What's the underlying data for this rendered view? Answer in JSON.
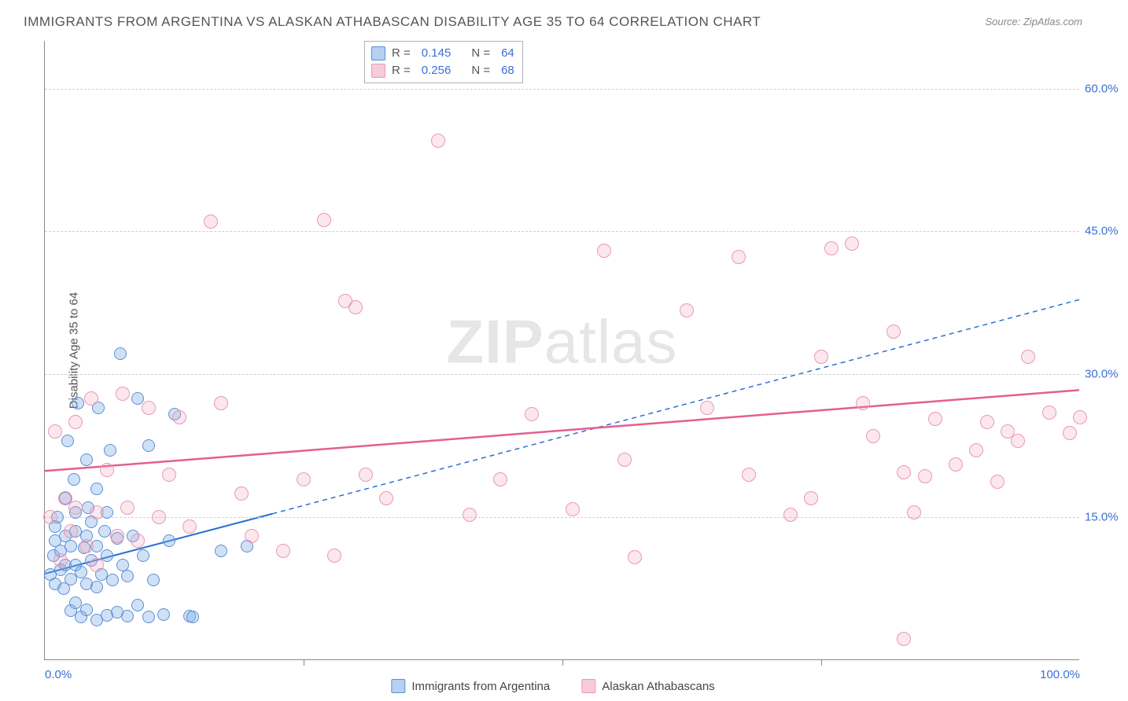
{
  "title": "IMMIGRANTS FROM ARGENTINA VS ALASKAN ATHABASCAN DISABILITY AGE 35 TO 64 CORRELATION CHART",
  "source": "Source: ZipAtlas.com",
  "watermark_zip": "ZIP",
  "watermark_atlas": "atlas",
  "y_axis_title": "Disability Age 35 to 64",
  "chart": {
    "type": "scatter",
    "xlim": [
      0,
      100
    ],
    "ylim": [
      0,
      65
    ],
    "x_ticks": [
      0,
      25,
      50,
      75,
      100
    ],
    "x_tick_labels": [
      "0.0%",
      "",
      "",
      "",
      "100.0%"
    ],
    "y_ticks": [
      15,
      30,
      45,
      60
    ],
    "y_tick_labels": [
      "15.0%",
      "30.0%",
      "45.0%",
      "60.0%"
    ],
    "background_color": "#ffffff",
    "grid_color": "#d0d0d0",
    "point_radius": 8,
    "series": [
      {
        "name": "Immigrants from Argentina",
        "color_fill": "rgba(120,170,230,0.35)",
        "color_stroke": "#5b8fd6",
        "r": 0.145,
        "n": 64,
        "trend": {
          "x1": 0,
          "y1": 9.0,
          "x2_solid": 22,
          "y2_solid": 15.3,
          "x2_dash": 100,
          "y2_dash": 37.8,
          "stroke": "#2b6fd4",
          "width": 2,
          "dash": "6 5"
        },
        "points": [
          [
            0.5,
            9
          ],
          [
            0.8,
            11
          ],
          [
            1,
            8
          ],
          [
            1,
            12.5
          ],
          [
            1,
            14
          ],
          [
            1.2,
            15
          ],
          [
            1.5,
            9.5
          ],
          [
            1.5,
            11.5
          ],
          [
            1.8,
            7.5
          ],
          [
            2,
            10
          ],
          [
            2,
            13
          ],
          [
            2,
            17
          ],
          [
            2.2,
            23
          ],
          [
            2.5,
            5.2
          ],
          [
            2.5,
            8.5
          ],
          [
            2.5,
            12
          ],
          [
            2.8,
            19
          ],
          [
            3,
            6
          ],
          [
            3,
            10
          ],
          [
            3,
            13.5
          ],
          [
            3,
            15.5
          ],
          [
            3.2,
            27
          ],
          [
            3.5,
            4.5
          ],
          [
            3.5,
            9.2
          ],
          [
            3.8,
            11.8
          ],
          [
            4,
            5.3
          ],
          [
            4,
            8
          ],
          [
            4,
            13
          ],
          [
            4,
            21
          ],
          [
            4.2,
            16
          ],
          [
            4.5,
            10.5
          ],
          [
            4.5,
            14.5
          ],
          [
            5,
            4.2
          ],
          [
            5,
            7.7
          ],
          [
            5,
            12
          ],
          [
            5,
            18
          ],
          [
            5.2,
            26.5
          ],
          [
            5.5,
            9
          ],
          [
            5.8,
            13.5
          ],
          [
            6,
            4.7
          ],
          [
            6,
            11
          ],
          [
            6,
            15.5
          ],
          [
            6.3,
            22
          ],
          [
            6.5,
            8.4
          ],
          [
            7,
            5
          ],
          [
            7,
            12.8
          ],
          [
            7.3,
            32.2
          ],
          [
            7.5,
            10
          ],
          [
            8,
            4.6
          ],
          [
            8,
            8.8
          ],
          [
            8.5,
            13
          ],
          [
            9,
            5.8
          ],
          [
            9,
            27.5
          ],
          [
            9.5,
            11
          ],
          [
            10,
            4.5
          ],
          [
            10,
            22.5
          ],
          [
            10.5,
            8.4
          ],
          [
            11.5,
            4.8
          ],
          [
            12,
            12.5
          ],
          [
            12.5,
            25.8
          ],
          [
            14,
            4.6
          ],
          [
            14.3,
            4.5
          ],
          [
            17,
            11.5
          ],
          [
            19.5,
            12
          ]
        ]
      },
      {
        "name": "Alaskan Athabascans",
        "color_fill": "rgba(240,160,185,0.25)",
        "color_stroke": "#e89ab4",
        "r": 0.256,
        "n": 68,
        "trend": {
          "x1": 0,
          "y1": 19.8,
          "x2_solid": 100,
          "y2_solid": 28.3,
          "stroke": "#e55f8a",
          "width": 2.5
        },
        "points": [
          [
            0.5,
            15
          ],
          [
            1,
            24
          ],
          [
            1.5,
            10.5
          ],
          [
            2,
            17
          ],
          [
            2.5,
            13.5
          ],
          [
            3,
            25
          ],
          [
            3,
            16
          ],
          [
            4,
            12
          ],
          [
            4.5,
            27.5
          ],
          [
            5,
            15.5
          ],
          [
            5,
            10
          ],
          [
            6,
            20
          ],
          [
            7,
            13
          ],
          [
            7.5,
            28
          ],
          [
            8,
            16
          ],
          [
            9,
            12.5
          ],
          [
            10,
            26.5
          ],
          [
            11,
            15
          ],
          [
            12,
            19.5
          ],
          [
            13,
            25.5
          ],
          [
            14,
            14
          ],
          [
            16,
            46
          ],
          [
            17,
            27
          ],
          [
            19,
            17.5
          ],
          [
            20,
            13
          ],
          [
            23,
            11.5
          ],
          [
            25,
            19
          ],
          [
            27,
            46.2
          ],
          [
            28,
            11
          ],
          [
            29,
            37.7
          ],
          [
            30,
            37
          ],
          [
            31,
            19.5
          ],
          [
            33,
            17
          ],
          [
            38,
            54.5
          ],
          [
            41,
            15.3
          ],
          [
            44,
            19
          ],
          [
            47,
            25.8
          ],
          [
            51,
            15.8
          ],
          [
            54,
            43
          ],
          [
            56,
            21
          ],
          [
            57,
            10.8
          ],
          [
            62,
            36.7
          ],
          [
            64,
            26.5
          ],
          [
            67,
            42.3
          ],
          [
            68,
            19.5
          ],
          [
            72,
            15.3
          ],
          [
            74,
            17
          ],
          [
            75,
            31.8
          ],
          [
            76,
            43.2
          ],
          [
            78,
            43.7
          ],
          [
            79,
            27
          ],
          [
            80,
            23.5
          ],
          [
            82,
            34.5
          ],
          [
            83,
            19.7
          ],
          [
            84,
            15.5
          ],
          [
            85,
            19.3
          ],
          [
            86,
            25.3
          ],
          [
            88,
            20.5
          ],
          [
            90,
            22
          ],
          [
            91,
            25
          ],
          [
            92,
            18.7
          ],
          [
            93,
            24
          ],
          [
            94,
            23
          ],
          [
            95,
            31.8
          ],
          [
            97,
            26
          ],
          [
            99,
            23.8
          ],
          [
            100,
            25.5
          ],
          [
            83,
            2.2
          ]
        ]
      }
    ]
  },
  "legend_bottom": [
    {
      "label": "Immigrants from Argentina",
      "swatch": "blue"
    },
    {
      "label": "Alaskan Athabascans",
      "swatch": "pink"
    }
  ]
}
